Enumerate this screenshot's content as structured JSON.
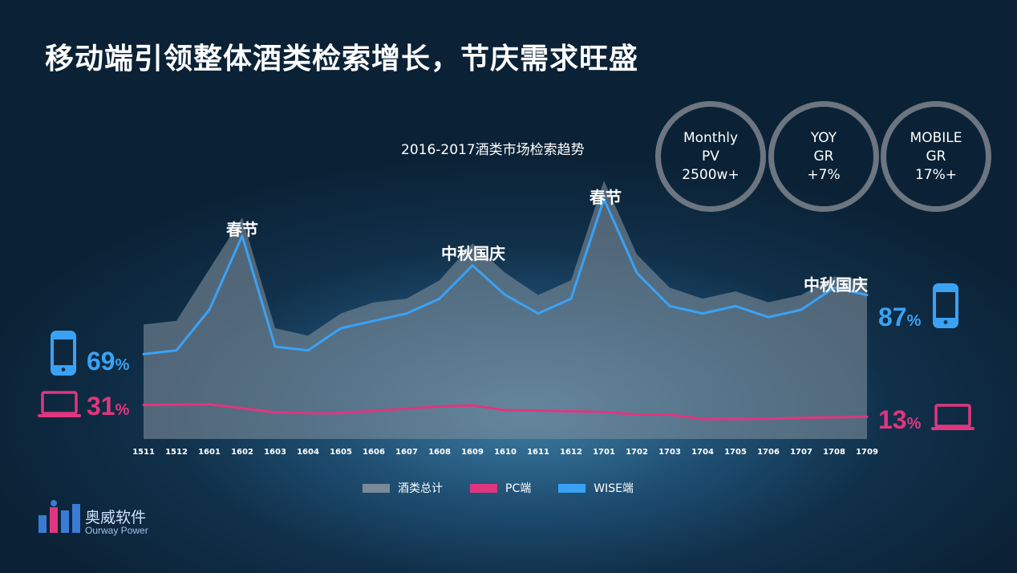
{
  "title": "移动端引领整体酒类检索增长，节庆需求旺盛",
  "kpis": [
    {
      "line1": "Monthly",
      "line2": "PV",
      "line3": "2500w+"
    },
    {
      "line1": "YOY",
      "line2": "GR",
      "line3": "+7%"
    },
    {
      "line1": "MOBILE",
      "line2": "GR",
      "line3": "17%+"
    }
  ],
  "annotations": {
    "spring1": "春节",
    "midautumn1": "中秋国庆",
    "spring2": "春节",
    "midautumn2": "中秋国庆"
  },
  "left_mobile_pct": "69",
  "left_pc_pct": "31",
  "right_mobile_pct": "87",
  "right_pc_pct": "13",
  "pct_unit": "%",
  "icons": {
    "mobile": "smartphone-icon",
    "pc": "laptop-icon"
  },
  "colors": {
    "total": "#7b8a98",
    "pc": "#e0367f",
    "wise": "#3aa2f5"
  },
  "logo": {
    "cn": "奥威软件",
    "en": "Ourway Power"
  },
  "chart_data": {
    "type": "area",
    "title": "2016-2017酒类市场检索趋势",
    "categories": [
      "1511",
      "1512",
      "1601",
      "1602",
      "1603",
      "1604",
      "1605",
      "1606",
      "1607",
      "1608",
      "1609",
      "1610",
      "1611",
      "1612",
      "1701",
      "1702",
      "1703",
      "1704",
      "1705",
      "1706",
      "1707",
      "1708",
      "1709"
    ],
    "series": [
      {
        "name": "酒类总计",
        "type": "area",
        "values": [
          31,
          32,
          46,
          60,
          30,
          28,
          34,
          37,
          38,
          43,
          53,
          45,
          39,
          43,
          70,
          50,
          41,
          38,
          40,
          37,
          39,
          44,
          43
        ]
      },
      {
        "name": "PC端",
        "type": "line",
        "values": [
          9.2,
          9.3,
          9.4,
          8.3,
          7.2,
          7.0,
          7.0,
          7.6,
          8.2,
          8.8,
          9.1,
          7.8,
          7.7,
          7.5,
          7.3,
          6.6,
          6.6,
          5.4,
          5.4,
          5.5,
          5.7,
          5.9,
          6.0
        ]
      },
      {
        "name": "WISE端",
        "type": "line",
        "values": [
          23,
          24,
          35,
          55,
          25,
          24,
          30,
          32,
          34,
          38,
          47,
          39,
          34,
          38,
          65,
          45,
          36,
          34,
          36,
          33,
          35,
          41,
          39
        ]
      }
    ],
    "ylim": [
      0,
      80
    ],
    "grid": false,
    "legend": "bottom"
  }
}
